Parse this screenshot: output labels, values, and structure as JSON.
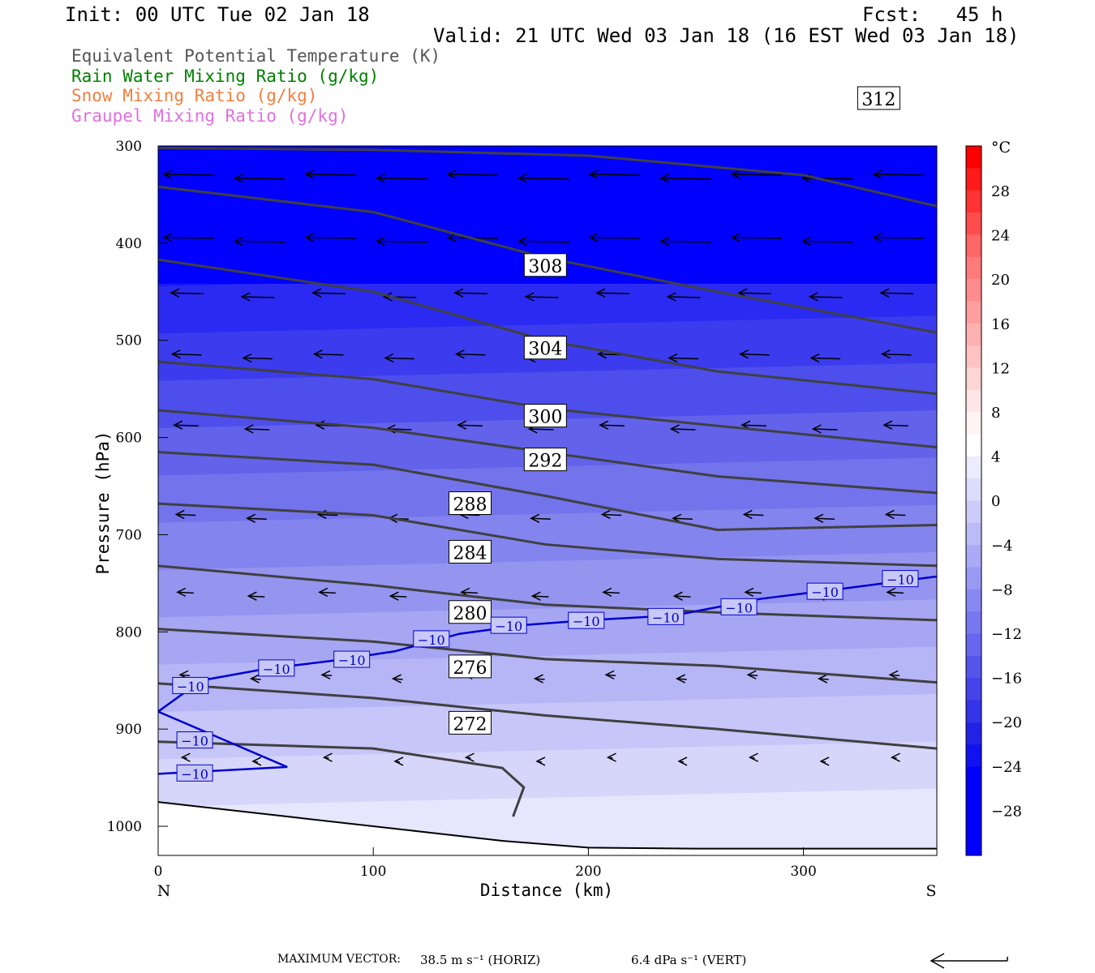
{
  "header": {
    "init": "Init: 00 UTC Tue 02 Jan 18",
    "fcst": "Fcst:   45 h",
    "valid": "Valid: 21 UTC Wed 03 Jan 18 (16 EST Wed 03 Jan 18)"
  },
  "legend": [
    {
      "label": "Equivalent Potential Temperature (K)",
      "color": "#555555"
    },
    {
      "label": "Rain Water Mixing Ratio (g/kg)",
      "color": "#008000"
    },
    {
      "label": "Snow Mixing Ratio (g/kg)",
      "color": "#f08040"
    },
    {
      "label": "Graupel Mixing Ratio (g/kg)",
      "color": "#e070e0"
    }
  ],
  "chart_data": {
    "type": "heatmap",
    "xlabel": "Distance (km)",
    "ylabel": "Pressure (hPa)",
    "xlim": [
      0,
      362
    ],
    "ylim": [
      1030,
      300
    ],
    "x_ticks": [
      "0",
      "100",
      "200",
      "300"
    ],
    "y_ticks": [
      "300",
      "400",
      "500",
      "600",
      "700",
      "800",
      "900",
      "1000"
    ],
    "x_end_labels": {
      "left": "N",
      "right": "S"
    },
    "colorbar": {
      "unit": "°C",
      "tick_labels": [
        "28",
        "24",
        "20",
        "16",
        "12",
        "8",
        "4",
        "0",
        "−4",
        "−8",
        "−12",
        "−16",
        "−20",
        "−24",
        "−28"
      ]
    },
    "theta_e_contours": [
      {
        "label": "312",
        "points": [
          [
            0,
            302
          ],
          [
            100,
            304
          ],
          [
            200,
            310
          ],
          [
            300,
            330
          ],
          [
            362,
            362
          ]
        ]
      },
      {
        "label": "308",
        "points": [
          [
            0,
            342
          ],
          [
            100,
            368
          ],
          [
            180,
            415
          ],
          [
            260,
            450
          ],
          [
            362,
            492
          ]
        ]
      },
      {
        "label": "304",
        "points": [
          [
            0,
            417
          ],
          [
            100,
            450
          ],
          [
            180,
            500
          ],
          [
            260,
            532
          ],
          [
            362,
            555
          ]
        ]
      },
      {
        "label": "300",
        "points": [
          [
            0,
            522
          ],
          [
            100,
            540
          ],
          [
            180,
            570
          ],
          [
            260,
            588
          ],
          [
            362,
            610
          ]
        ]
      },
      {
        "label": "292",
        "points": [
          [
            0,
            572
          ],
          [
            100,
            590
          ],
          [
            180,
            615
          ],
          [
            260,
            640
          ],
          [
            362,
            657
          ]
        ]
      },
      {
        "label": "288",
        "points": [
          [
            0,
            615
          ],
          [
            100,
            628
          ],
          [
            180,
            660
          ],
          [
            260,
            695
          ],
          [
            362,
            690
          ]
        ]
      },
      {
        "label": "284",
        "points": [
          [
            0,
            668
          ],
          [
            100,
            680
          ],
          [
            180,
            710
          ],
          [
            260,
            725
          ],
          [
            362,
            732
          ]
        ]
      },
      {
        "label": "280",
        "points": [
          [
            0,
            732
          ],
          [
            100,
            752
          ],
          [
            180,
            772
          ],
          [
            260,
            780
          ],
          [
            362,
            788
          ]
        ]
      },
      {
        "label": "276",
        "points": [
          [
            0,
            797
          ],
          [
            100,
            810
          ],
          [
            180,
            828
          ],
          [
            260,
            835
          ],
          [
            362,
            852
          ]
        ]
      },
      {
        "label": "272",
        "points": [
          [
            0,
            853
          ],
          [
            100,
            868
          ],
          [
            180,
            886
          ],
          [
            260,
            900
          ],
          [
            362,
            920
          ]
        ]
      },
      {
        "label": "",
        "points": [
          [
            0,
            913
          ],
          [
            100,
            920
          ],
          [
            160,
            940
          ],
          [
            170,
            960
          ],
          [
            165,
            990
          ]
        ]
      }
    ],
    "isotherm_minus10": {
      "label": "−10",
      "label_count": 13,
      "points": [
        [
          0,
          882
        ],
        [
          20,
          850
        ],
        [
          50,
          838
        ],
        [
          80,
          830
        ],
        [
          110,
          820
        ],
        [
          140,
          802
        ],
        [
          170,
          793
        ],
        [
          200,
          788
        ],
        [
          240,
          783
        ],
        [
          280,
          766
        ],
        [
          320,
          755
        ],
        [
          362,
          743
        ]
      ]
    },
    "vectors": {
      "max_vector_label": "MAXIMUM VECTOR:",
      "horiz": "38.5 m s⁻¹ (HORIZ)",
      "vert": "6.4 dPa s⁻¹ (VERT)"
    }
  }
}
